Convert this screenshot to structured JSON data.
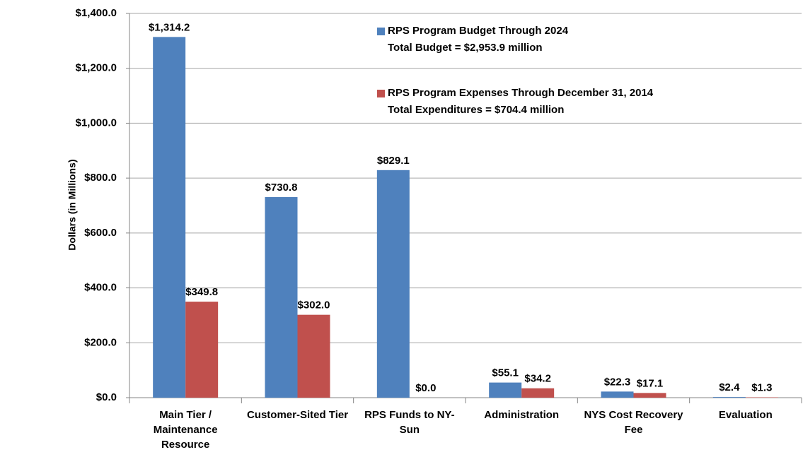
{
  "chart_data": {
    "type": "bar",
    "y_label": "Dollars (in Millions)",
    "categories": [
      "Main Tier / Maintenance Resource",
      "Customer-Sited Tier",
      "RPS Funds to NY-Sun",
      "Administration",
      "NYS Cost Recovery Fee",
      "Evaluation"
    ],
    "series": [
      {
        "name": "RPS Program Budget Through 2024",
        "note": "Total Budget = $2,953.9 million",
        "color": "#4f81bd",
        "values": [
          1314.2,
          730.8,
          829.1,
          55.1,
          22.3,
          2.4
        ],
        "value_labels": [
          "$1,314.2",
          "$730.8",
          "$829.1",
          "$55.1",
          "$22.3",
          "$2.4"
        ]
      },
      {
        "name": "RPS Program Expenses Through December 31, 2014",
        "note": "Total Expenditures = $704.4 million",
        "color": "#c0504d",
        "values": [
          349.8,
          302.0,
          0.0,
          34.2,
          17.1,
          1.3
        ],
        "value_labels": [
          "$349.8",
          "$302.0",
          "$0.0",
          "$34.2",
          "$17.1",
          "$1.3"
        ]
      }
    ],
    "ylim": [
      0,
      1400
    ],
    "yticks": [
      {
        "value": 0,
        "label": "$0.0"
      },
      {
        "value": 200,
        "label": "$200.0"
      },
      {
        "value": 400,
        "label": "$400.0"
      },
      {
        "value": 600,
        "label": "$600.0"
      },
      {
        "value": 800,
        "label": "$800.0"
      },
      {
        "value": 1000,
        "label": "$1,000.0"
      },
      {
        "value": 1200,
        "label": "$1,200.0"
      },
      {
        "value": 1400,
        "label": "$1,400.0"
      }
    ],
    "grid": true
  }
}
